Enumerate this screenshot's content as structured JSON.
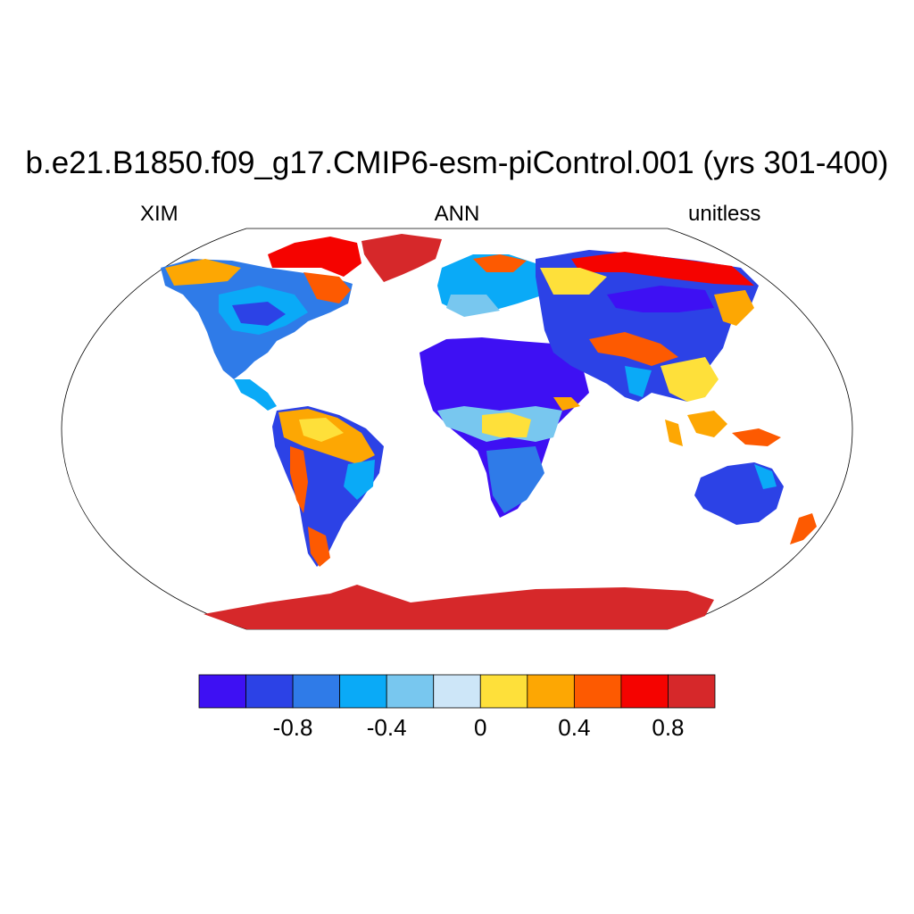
{
  "title": "b.e21.B1850.f09_g17.CMIP6-esm-piControl.001 (yrs 301-400)",
  "left_string": "XIM",
  "center_string": "ANN",
  "right_string": "unitless",
  "projection": "Robinson",
  "colorbar": {
    "colors": [
      "#3e10f3",
      "#2c42e6",
      "#2f7be8",
      "#0aaaf7",
      "#78c7ef",
      "#cde6f8",
      "#fee03a",
      "#fda703",
      "#fd5a01",
      "#f50300",
      "#d6282a"
    ],
    "boundaries": [
      -1.0,
      -0.8,
      -0.6,
      -0.4,
      -0.2,
      0,
      0.2,
      0.4,
      0.6,
      0.8,
      1.0
    ],
    "tick_labels": [
      "-0.8",
      "-0.4",
      "0",
      "0.4",
      "0.8"
    ],
    "tick_values": [
      -0.8,
      -0.4,
      0,
      0.4,
      0.8
    ]
  }
}
